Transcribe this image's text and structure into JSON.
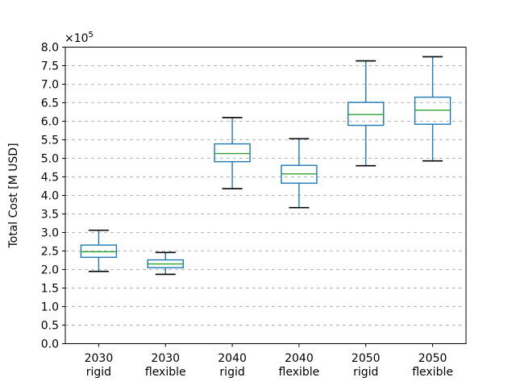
{
  "figure": {
    "background": "#ffffff"
  },
  "chart_data": {
    "type": "boxplot",
    "title": "",
    "xlabel": "",
    "ylabel": "Total Cost [M USD]",
    "offset_base": "×10",
    "offset_exp": "5",
    "value_multiplier": 100000,
    "unit": "M USD",
    "ylim": [
      0.0,
      8.0
    ],
    "ytick_step": 0.5,
    "ytick_labels": [
      "0.0",
      "0.5",
      "1.0",
      "1.5",
      "2.0",
      "2.5",
      "3.0",
      "3.5",
      "4.0",
      "4.5",
      "5.0",
      "5.5",
      "6.0",
      "6.5",
      "7.0",
      "7.5",
      "8.0"
    ],
    "grid": "horizontal dashed",
    "legend": "none",
    "categories": [
      [
        "2030",
        "rigid"
      ],
      [
        "2030",
        "flexible"
      ],
      [
        "2040",
        "rigid"
      ],
      [
        "2040",
        "flexible"
      ],
      [
        "2050",
        "rigid"
      ],
      [
        "2050",
        "flexible"
      ]
    ],
    "boxes": [
      {
        "label": "2030 rigid",
        "whisker_low": 1.95,
        "q1": 2.33,
        "median": 2.48,
        "q3": 2.66,
        "whisker_high": 3.06
      },
      {
        "label": "2030 flexible",
        "whisker_low": 1.87,
        "q1": 2.05,
        "median": 2.15,
        "q3": 2.26,
        "whisker_high": 2.46
      },
      {
        "label": "2040 rigid",
        "whisker_low": 4.18,
        "q1": 4.91,
        "median": 5.13,
        "q3": 5.39,
        "whisker_high": 6.1
      },
      {
        "label": "2040 flexible",
        "whisker_low": 3.67,
        "q1": 4.33,
        "median": 4.58,
        "q3": 4.81,
        "whisker_high": 5.53
      },
      {
        "label": "2050 rigid",
        "whisker_low": 4.8,
        "q1": 5.89,
        "median": 6.18,
        "q3": 6.51,
        "whisker_high": 7.63
      },
      {
        "label": "2050 flexible",
        "whisker_low": 4.93,
        "q1": 5.92,
        "median": 6.3,
        "q3": 6.65,
        "whisker_high": 7.74
      }
    ],
    "colors": {
      "box": "#1f77b4",
      "whisker": "#1f77b4",
      "median": "#2ca02c",
      "cap": "#000000",
      "grid": "#bbbbbb",
      "spine": "#000000",
      "text": "#000000"
    }
  }
}
